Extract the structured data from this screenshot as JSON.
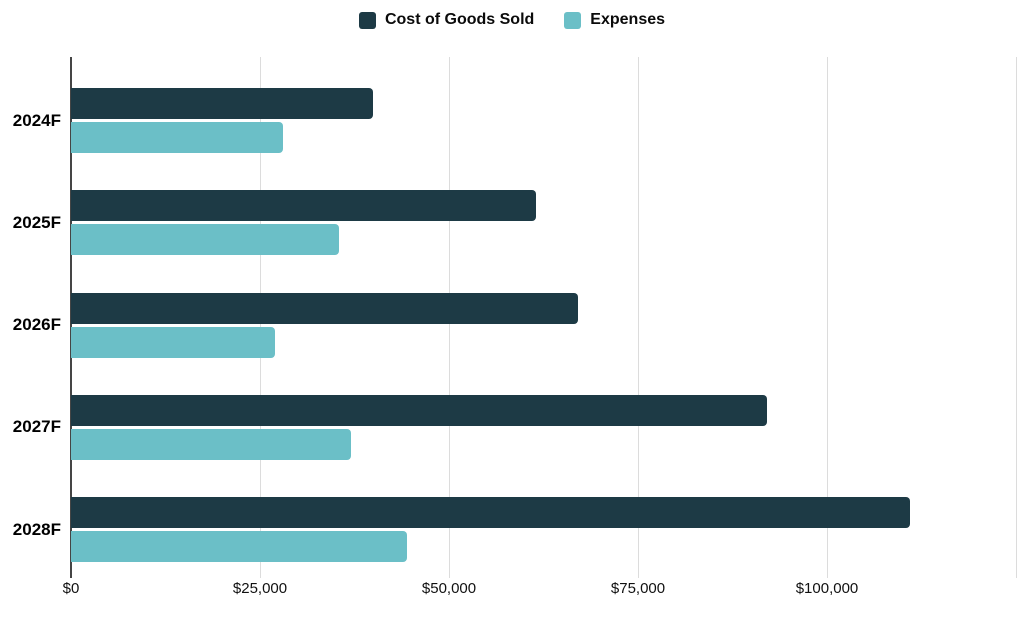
{
  "chart_data": {
    "type": "bar",
    "orientation": "horizontal",
    "title": "",
    "categories": [
      "2024F",
      "2025F",
      "2026F",
      "2027F",
      "2028F"
    ],
    "series": [
      {
        "name": "Cost of Goods Sold",
        "color": "#1d3a45",
        "values": [
          40000,
          61500,
          67000,
          92000,
          111000
        ]
      },
      {
        "name": "Expenses",
        "color": "#6bbfc7",
        "values": [
          28000,
          35500,
          27000,
          37000,
          44500
        ]
      }
    ],
    "x_axis": {
      "min": 0,
      "max": 125000,
      "tick_interval": 25000,
      "tick_labels": [
        "$0",
        "$25,000",
        "$50,000",
        "$75,000",
        "$100,000"
      ]
    },
    "legend_position": "top",
    "grid": "vertical",
    "colors": {
      "gridline": "#dcdcdc",
      "axis_line": "#454545",
      "label_text": "#000000"
    }
  }
}
